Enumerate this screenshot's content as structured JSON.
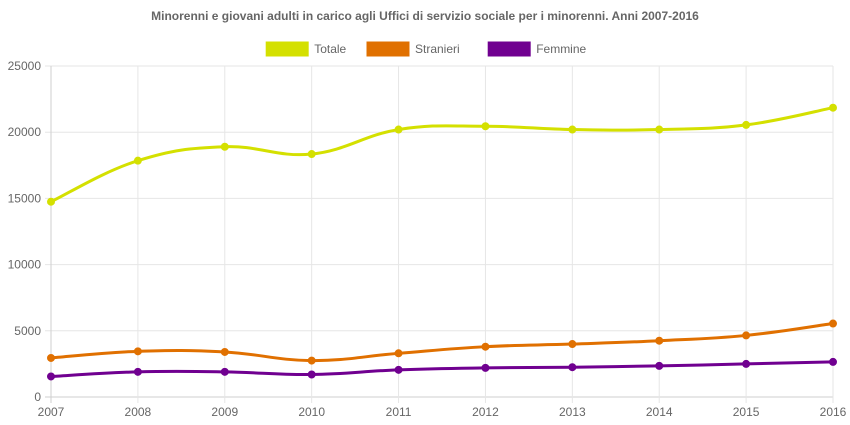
{
  "chart_data": {
    "type": "line",
    "title": "Minorenni e giovani adulti in carico agli Uffici di servizio sociale per i minorenni. Anni 2007-2016",
    "xlabel": "",
    "ylabel": "",
    "categories": [
      "2007",
      "2008",
      "2009",
      "2010",
      "2011",
      "2012",
      "2013",
      "2014",
      "2015",
      "2016"
    ],
    "ylim": [
      0,
      25000
    ],
    "yticks": [
      "0",
      "5000",
      "10000",
      "15000",
      "20000",
      "25000"
    ],
    "grid": true,
    "legend_position": "top",
    "series": [
      {
        "name": "Totale",
        "color": "#d4e000",
        "values": [
          14750,
          17850,
          18900,
          18350,
          20200,
          20450,
          20200,
          20200,
          20550,
          21850
        ]
      },
      {
        "name": "Stranieri",
        "color": "#e07000",
        "values": [
          2950,
          3450,
          3400,
          2750,
          3300,
          3800,
          4000,
          4250,
          4650,
          5550
        ]
      },
      {
        "name": "Femmine",
        "color": "#700090",
        "values": [
          1550,
          1900,
          1900,
          1700,
          2050,
          2200,
          2250,
          2350,
          2500,
          2650
        ]
      }
    ]
  }
}
